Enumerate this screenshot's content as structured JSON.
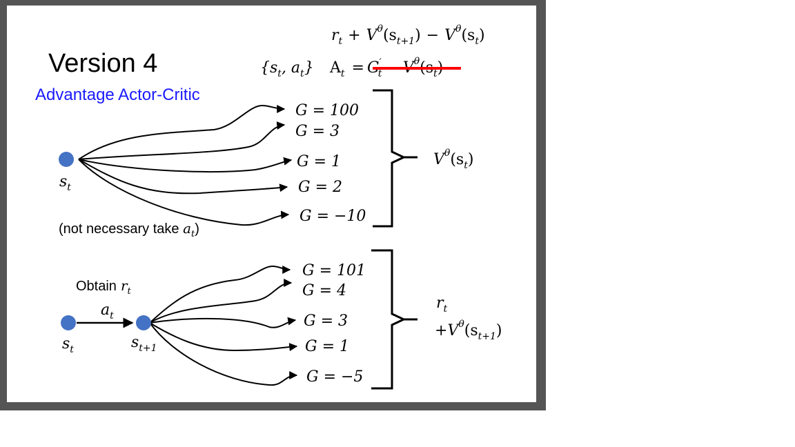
{
  "slide": {
    "title": "Version 4",
    "subtitle": "Advantage Actor-Critic",
    "note_prefix": "(not necessary take ",
    "note_var": "a",
    "note_sub": "t",
    "note_suffix": ")",
    "obtain_label": "Obtain",
    "obtain_var": "r",
    "obtain_sub": "t",
    "colors": {
      "subtitle": "#1a1aff",
      "node": "#4472c4",
      "strike": "#ff0000",
      "text": "#000000"
    }
  },
  "formulas": {
    "top": {
      "r": "r",
      "r_sub": "t",
      "plus": "+",
      "V1": "V",
      "theta1": "θ",
      "s1_open": "(s",
      "s1_sub": "t+1",
      "s1_close": ")",
      "minus": "−",
      "V2": "V",
      "theta2": "θ",
      "s2_open": "(s",
      "s2_sub": "t",
      "s2_close": ")"
    },
    "pair": {
      "open": "{s",
      "s_sub": "t",
      "comma": ", a",
      "a_sub": "t",
      "close": "}"
    },
    "advantage": {
      "A": "A",
      "A_sub": "t",
      "eq": "=",
      "G": "G",
      "G_prime": "′",
      "G_sub": "t",
      "minus": "−",
      "V": "V",
      "theta": "θ",
      "s_open": "(s",
      "s_sub": "t",
      "s_close": ")"
    }
  },
  "upper": {
    "node_var": "s",
    "node_sub": "t",
    "returns": [
      "G = 100",
      "G = 3",
      "G = 1",
      "G = 2",
      "G = −10"
    ],
    "value": {
      "V": "V",
      "theta": "θ",
      "s_open": "(s",
      "s_sub": "t",
      "s_close": ")"
    }
  },
  "lower": {
    "node1_var": "s",
    "node1_sub": "t",
    "action_var": "a",
    "action_sub": "t",
    "node2_var": "s",
    "node2_sub": "t+1",
    "returns": [
      "G = 101",
      "G = 4",
      "G = 3",
      "G = 1",
      "G = −5"
    ],
    "value": {
      "r": "r",
      "r_sub": "t",
      "plus": "+",
      "V": "V",
      "theta": "θ",
      "s_open": "(s",
      "s_sub": "t+1",
      "s_close": ")"
    }
  }
}
